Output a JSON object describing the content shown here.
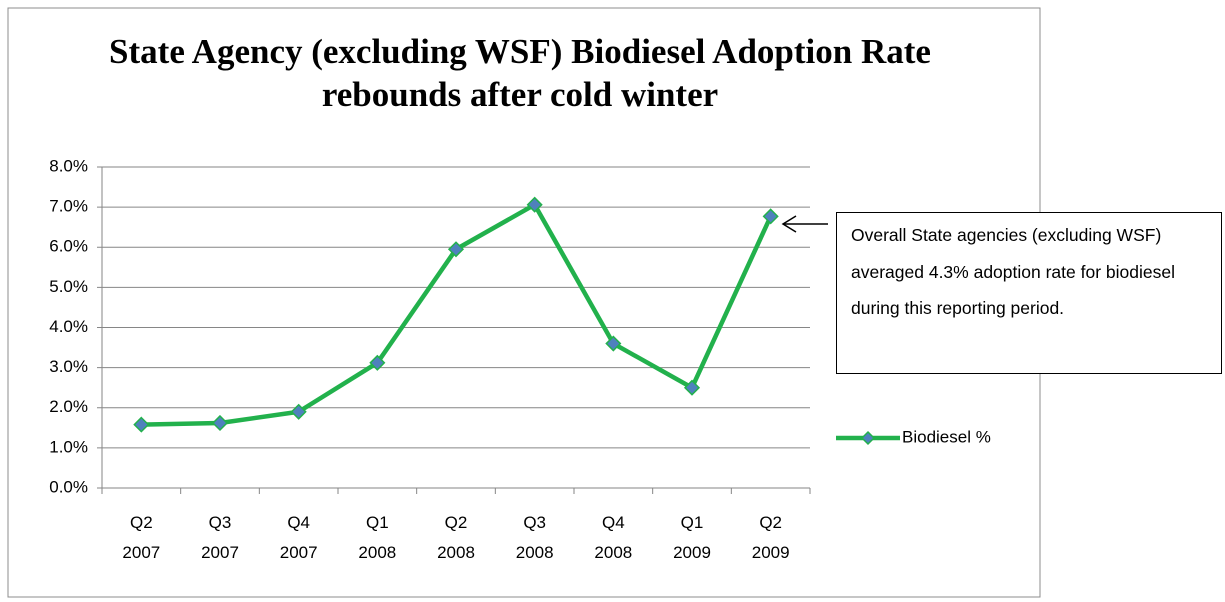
{
  "chart_data": {
    "type": "line",
    "title": "State Agency (excluding WSF) Biodiesel Adoption Rate rebounds after cold winter",
    "categories": [
      "Q2 2007",
      "Q3 2007",
      "Q4 2007",
      "Q1 2008",
      "Q2 2008",
      "Q3 2008",
      "Q4 2008",
      "Q1 2009",
      "Q2 2009"
    ],
    "series": [
      {
        "name": "Biodiesel %",
        "color": "#22b14c",
        "marker_color": "#4f81bd",
        "values": [
          1.58,
          1.62,
          1.9,
          3.12,
          5.95,
          7.06,
          3.6,
          2.5,
          6.77
        ]
      }
    ],
    "ylim": [
      0,
      8
    ],
    "yticks": [
      {
        "value": 0,
        "label": "0.0%"
      },
      {
        "value": 1,
        "label": "1.0%"
      },
      {
        "value": 2,
        "label": "2.0%"
      },
      {
        "value": 3,
        "label": "3.0%"
      },
      {
        "value": 4,
        "label": "4.0%"
      },
      {
        "value": 5,
        "label": "5.0%"
      },
      {
        "value": 6,
        "label": "6.0%"
      },
      {
        "value": 7,
        "label": "7.0%"
      },
      {
        "value": 8,
        "label": "8.0%"
      }
    ],
    "grid": true,
    "legend": "right",
    "annotation": "Overall State agencies (excluding WSF) averaged 4.3% adoption rate for biodiesel during this reporting period."
  }
}
